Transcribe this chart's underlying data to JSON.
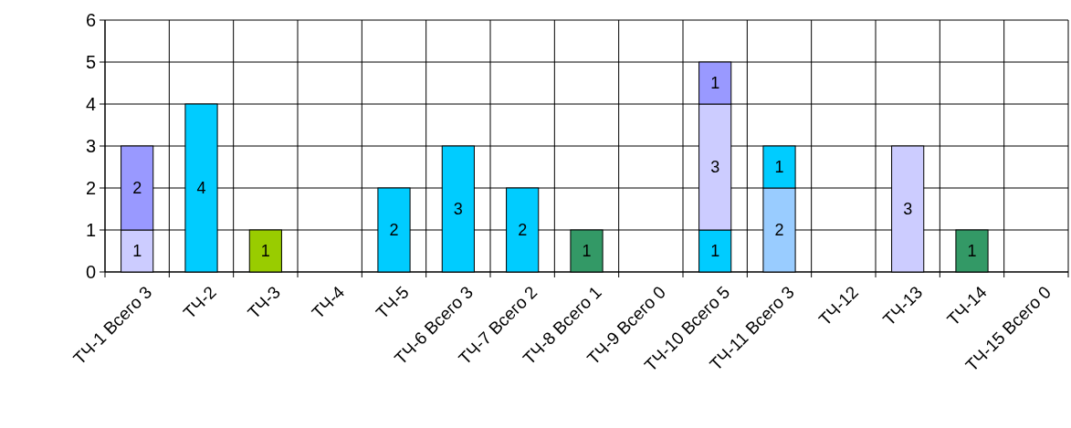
{
  "chart_data": {
    "type": "bar",
    "stacked": true,
    "data_labels": true,
    "grid": true,
    "categories": [
      "ТЧ-1 Всего 3",
      "ТЧ-2",
      "ТЧ-3",
      "ТЧ-4",
      "ТЧ-5",
      "ТЧ-6 Всего 3",
      "ТЧ-7 Всего 2",
      "ТЧ-8 Всего 1",
      "ТЧ-9 Всего 0",
      "ТЧ-10 Всего 5",
      "ТЧ-11 Всего 3",
      "ТЧ-12",
      "ТЧ-13",
      "ТЧ-14",
      "ТЧ-15 Всего 0"
    ],
    "ylim": [
      0,
      6
    ],
    "yticks": [
      0,
      1,
      2,
      3,
      4,
      5,
      6
    ],
    "series": [
      {
        "color": "#99ccff",
        "values": [
          null,
          null,
          null,
          null,
          null,
          null,
          null,
          null,
          null,
          null,
          2,
          null,
          null,
          null,
          null
        ]
      },
      {
        "color": "#00ccff",
        "values": [
          null,
          4,
          null,
          null,
          2,
          3,
          2,
          null,
          null,
          1,
          1,
          null,
          null,
          null,
          null
        ]
      },
      {
        "color": "#ccccff",
        "values": [
          1,
          null,
          null,
          null,
          null,
          null,
          null,
          null,
          null,
          3,
          null,
          null,
          3,
          null,
          null
        ]
      },
      {
        "color": "#9999ff",
        "values": [
          2,
          null,
          null,
          null,
          null,
          null,
          null,
          null,
          null,
          1,
          null,
          null,
          null,
          null,
          null
        ]
      },
      {
        "color": "#99cc00",
        "values": [
          null,
          null,
          1,
          null,
          null,
          null,
          null,
          null,
          null,
          null,
          null,
          null,
          null,
          null,
          null
        ]
      },
      {
        "color": "#339966",
        "values": [
          null,
          null,
          null,
          null,
          null,
          null,
          null,
          1,
          null,
          null,
          null,
          null,
          null,
          1,
          null
        ]
      }
    ]
  }
}
